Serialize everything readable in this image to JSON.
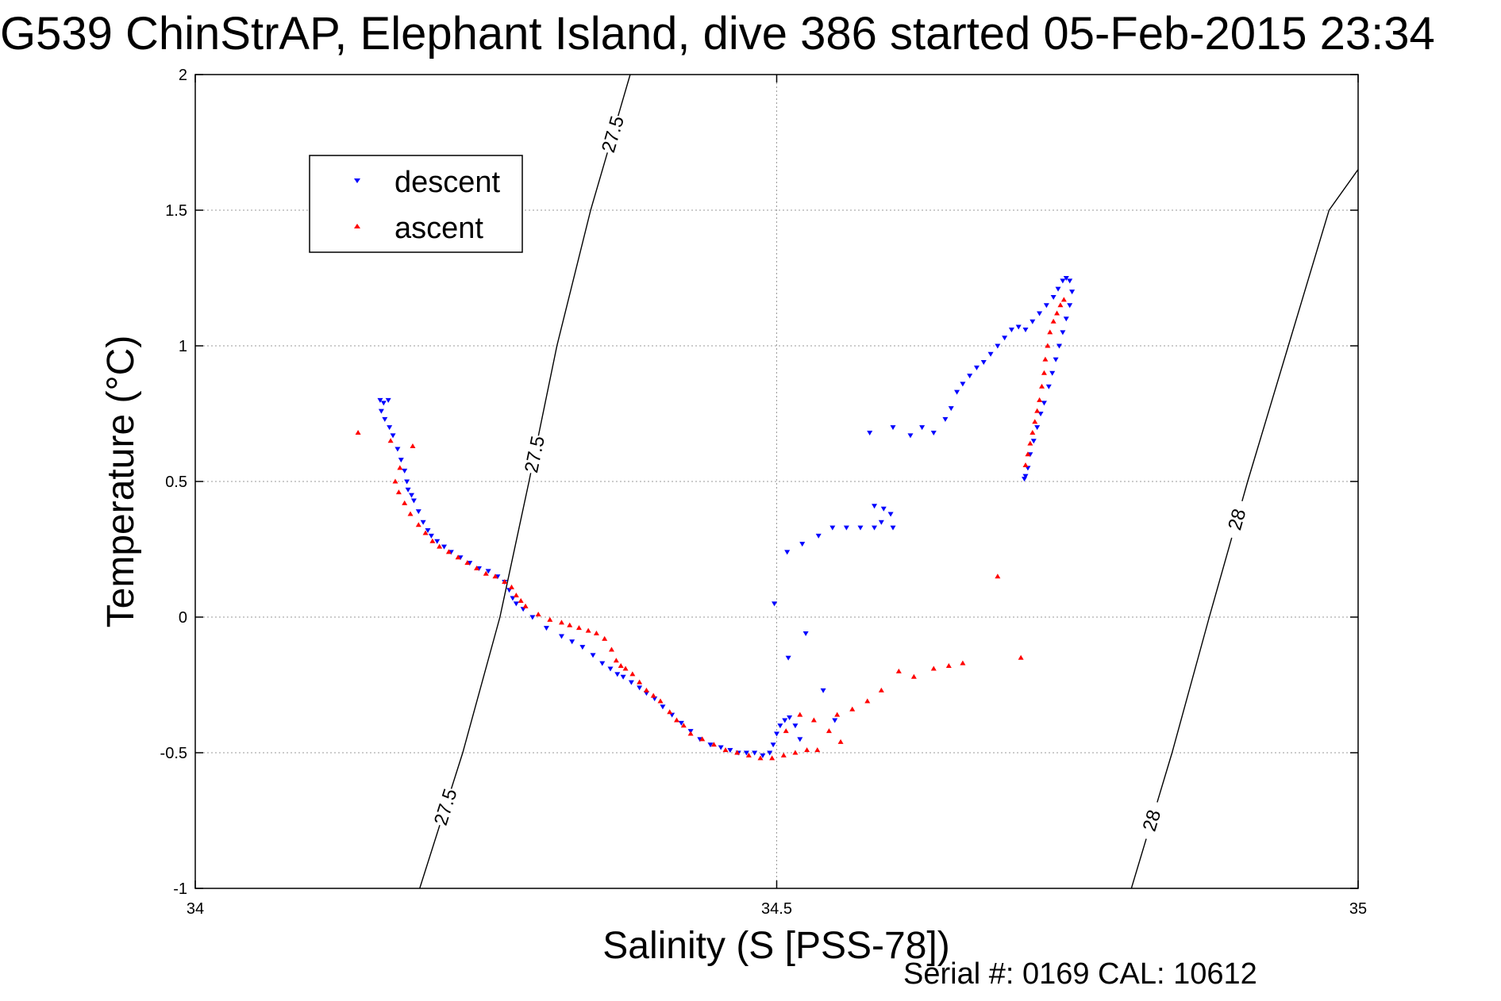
{
  "chart_data": {
    "type": "scatter",
    "title": "G539 ChinStrAP, Elephant Island, dive 386 started 05-Feb-2015 23:34",
    "xlabel": "Salinity (S [PSS-78])",
    "ylabel": "Temperature (°C)",
    "xlim": [
      34,
      35
    ],
    "ylim": [
      -1,
      2
    ],
    "xticks": [
      "34",
      "34.5",
      "35"
    ],
    "yticks": [
      "-1",
      "-0.5",
      "0",
      "0.5",
      "1",
      "1.5",
      "2"
    ],
    "grid": true,
    "legend_position": "top-left",
    "footer": "Serial #: 0169 CAL: 10612",
    "contour_labels": [
      "27.5",
      "27.5",
      "27.5",
      "28",
      "28"
    ],
    "series": [
      {
        "name": "descent",
        "color": "#0000ff",
        "marker": "triangle-down",
        "points": [
          [
            34.159,
            0.8
          ],
          [
            34.162,
            0.79
          ],
          [
            34.166,
            0.8
          ],
          [
            34.16,
            0.76
          ],
          [
            34.163,
            0.73
          ],
          [
            34.167,
            0.7
          ],
          [
            34.17,
            0.67
          ],
          [
            34.174,
            0.62
          ],
          [
            34.177,
            0.58
          ],
          [
            34.18,
            0.54
          ],
          [
            34.182,
            0.5
          ],
          [
            34.183,
            0.47
          ],
          [
            34.186,
            0.45
          ],
          [
            34.188,
            0.43
          ],
          [
            34.192,
            0.39
          ],
          [
            34.196,
            0.35
          ],
          [
            34.2,
            0.32
          ],
          [
            34.203,
            0.3
          ],
          [
            34.208,
            0.28
          ],
          [
            34.214,
            0.26
          ],
          [
            34.22,
            0.24
          ],
          [
            34.228,
            0.22
          ],
          [
            34.236,
            0.2
          ],
          [
            34.244,
            0.18
          ],
          [
            34.252,
            0.17
          ],
          [
            34.26,
            0.15
          ],
          [
            34.266,
            0.13
          ],
          [
            34.27,
            0.1
          ],
          [
            34.273,
            0.07
          ],
          [
            34.276,
            0.05
          ],
          [
            34.282,
            0.03
          ],
          [
            34.29,
            0.0
          ],
          [
            34.302,
            -0.04
          ],
          [
            34.315,
            -0.07
          ],
          [
            34.324,
            -0.09
          ],
          [
            34.333,
            -0.11
          ],
          [
            34.342,
            -0.14
          ],
          [
            34.35,
            -0.17
          ],
          [
            34.357,
            -0.19
          ],
          [
            34.363,
            -0.21
          ],
          [
            34.368,
            -0.22
          ],
          [
            34.375,
            -0.24
          ],
          [
            34.382,
            -0.26
          ],
          [
            34.388,
            -0.28
          ],
          [
            34.395,
            -0.3
          ],
          [
            34.402,
            -0.33
          ],
          [
            34.41,
            -0.36
          ],
          [
            34.418,
            -0.39
          ],
          [
            34.426,
            -0.42
          ],
          [
            34.434,
            -0.45
          ],
          [
            34.443,
            -0.47
          ],
          [
            34.452,
            -0.48
          ],
          [
            34.46,
            -0.49
          ],
          [
            34.467,
            -0.5
          ],
          [
            34.474,
            -0.5
          ],
          [
            34.481,
            -0.5
          ],
          [
            34.488,
            -0.51
          ],
          [
            34.494,
            -0.5
          ],
          [
            34.497,
            -0.47
          ],
          [
            34.5,
            -0.43
          ],
          [
            34.503,
            -0.4
          ],
          [
            34.507,
            -0.38
          ],
          [
            34.511,
            -0.37
          ],
          [
            34.516,
            -0.4
          ],
          [
            34.52,
            -0.45
          ],
          [
            34.498,
            0.05
          ],
          [
            34.509,
            0.24
          ],
          [
            34.522,
            0.27
          ],
          [
            34.536,
            0.3
          ],
          [
            34.548,
            0.33
          ],
          [
            34.56,
            0.33
          ],
          [
            34.572,
            0.33
          ],
          [
            34.584,
            0.33
          ],
          [
            34.59,
            0.35
          ],
          [
            34.6,
            0.33
          ],
          [
            34.584,
            0.41
          ],
          [
            34.592,
            0.4
          ],
          [
            34.598,
            0.38
          ],
          [
            34.51,
            -0.15
          ],
          [
            34.525,
            -0.06
          ],
          [
            34.54,
            -0.27
          ],
          [
            34.55,
            -0.38
          ],
          [
            34.58,
            0.68
          ],
          [
            34.6,
            0.7
          ],
          [
            34.615,
            0.67
          ],
          [
            34.625,
            0.7
          ],
          [
            34.635,
            0.68
          ],
          [
            34.645,
            0.73
          ],
          [
            34.65,
            0.77
          ],
          [
            34.655,
            0.83
          ],
          [
            34.66,
            0.86
          ],
          [
            34.666,
            0.89
          ],
          [
            34.672,
            0.92
          ],
          [
            34.678,
            0.94
          ],
          [
            34.684,
            0.97
          ],
          [
            34.69,
            1.0
          ],
          [
            34.696,
            1.03
          ],
          [
            34.702,
            1.06
          ],
          [
            34.708,
            1.07
          ],
          [
            34.714,
            1.06
          ],
          [
            34.72,
            1.09
          ],
          [
            34.726,
            1.12
          ],
          [
            34.732,
            1.15
          ],
          [
            34.738,
            1.18
          ],
          [
            34.742,
            1.21
          ],
          [
            34.746,
            1.24
          ],
          [
            34.749,
            1.25
          ],
          [
            34.752,
            1.24
          ],
          [
            34.754,
            1.2
          ],
          [
            34.752,
            1.15
          ],
          [
            34.749,
            1.1
          ],
          [
            34.746,
            1.05
          ],
          [
            34.743,
            1.0
          ],
          [
            34.74,
            0.95
          ],
          [
            34.737,
            0.9
          ],
          [
            34.734,
            0.85
          ],
          [
            34.73,
            0.79
          ],
          [
            34.727,
            0.75
          ],
          [
            34.724,
            0.7
          ],
          [
            34.721,
            0.65
          ],
          [
            34.718,
            0.6
          ],
          [
            34.716,
            0.55
          ],
          [
            34.714,
            0.52
          ],
          [
            34.713,
            0.51
          ]
        ]
      },
      {
        "name": "ascent",
        "color": "#ff0000",
        "marker": "triangle-up",
        "points": [
          [
            34.14,
            0.68
          ],
          [
            34.168,
            0.65
          ],
          [
            34.187,
            0.63
          ],
          [
            34.176,
            0.55
          ],
          [
            34.172,
            0.5
          ],
          [
            34.175,
            0.46
          ],
          [
            34.18,
            0.42
          ],
          [
            34.185,
            0.38
          ],
          [
            34.192,
            0.34
          ],
          [
            34.198,
            0.31
          ],
          [
            34.204,
            0.28
          ],
          [
            34.21,
            0.26
          ],
          [
            34.218,
            0.24
          ],
          [
            34.226,
            0.22
          ],
          [
            34.234,
            0.2
          ],
          [
            34.242,
            0.18
          ],
          [
            34.25,
            0.16
          ],
          [
            34.258,
            0.15
          ],
          [
            34.266,
            0.13
          ],
          [
            34.272,
            0.11
          ],
          [
            34.276,
            0.08
          ],
          [
            34.28,
            0.06
          ],
          [
            34.284,
            0.04
          ],
          [
            34.295,
            0.01
          ],
          [
            34.305,
            -0.01
          ],
          [
            34.315,
            -0.02
          ],
          [
            34.322,
            -0.03
          ],
          [
            34.33,
            -0.04
          ],
          [
            34.338,
            -0.05
          ],
          [
            34.345,
            -0.06
          ],
          [
            34.352,
            -0.08
          ],
          [
            34.358,
            -0.12
          ],
          [
            34.362,
            -0.16
          ],
          [
            34.366,
            -0.18
          ],
          [
            34.37,
            -0.19
          ],
          [
            34.376,
            -0.21
          ],
          [
            34.382,
            -0.24
          ],
          [
            34.388,
            -0.27
          ],
          [
            34.394,
            -0.29
          ],
          [
            34.4,
            -0.31
          ],
          [
            34.408,
            -0.35
          ],
          [
            34.414,
            -0.38
          ],
          [
            34.42,
            -0.4
          ],
          [
            34.426,
            -0.43
          ],
          [
            34.436,
            -0.45
          ],
          [
            34.446,
            -0.47
          ],
          [
            34.456,
            -0.49
          ],
          [
            34.466,
            -0.5
          ],
          [
            34.476,
            -0.51
          ],
          [
            34.486,
            -0.52
          ],
          [
            34.496,
            -0.52
          ],
          [
            34.506,
            -0.51
          ],
          [
            34.516,
            -0.5
          ],
          [
            34.526,
            -0.49
          ],
          [
            34.535,
            -0.49
          ],
          [
            34.508,
            -0.42
          ],
          [
            34.52,
            -0.36
          ],
          [
            34.532,
            -0.38
          ],
          [
            34.545,
            -0.42
          ],
          [
            34.555,
            -0.46
          ],
          [
            34.552,
            -0.36
          ],
          [
            34.565,
            -0.34
          ],
          [
            34.578,
            -0.31
          ],
          [
            34.59,
            -0.27
          ],
          [
            34.605,
            -0.2
          ],
          [
            34.618,
            -0.22
          ],
          [
            34.635,
            -0.19
          ],
          [
            34.648,
            -0.18
          ],
          [
            34.66,
            -0.17
          ],
          [
            34.69,
            0.15
          ],
          [
            34.71,
            -0.15
          ],
          [
            34.714,
            0.56
          ],
          [
            34.716,
            0.6
          ],
          [
            34.718,
            0.64
          ],
          [
            34.72,
            0.68
          ],
          [
            34.722,
            0.72
          ],
          [
            34.724,
            0.76
          ],
          [
            34.726,
            0.8
          ],
          [
            34.728,
            0.85
          ],
          [
            34.73,
            0.9
          ],
          [
            34.731,
            0.95
          ],
          [
            34.733,
            1.0
          ],
          [
            34.735,
            1.05
          ],
          [
            34.738,
            1.09
          ],
          [
            34.741,
            1.12
          ],
          [
            34.744,
            1.15
          ],
          [
            34.747,
            1.17
          ]
        ]
      }
    ],
    "contours": [
      {
        "label_value": 27.5,
        "points": [
          [
            34.193,
            -1.0
          ],
          [
            34.23,
            -0.5
          ],
          [
            34.262,
            0.0
          ],
          [
            34.287,
            0.5
          ],
          [
            34.311,
            1.0
          ],
          [
            34.34,
            1.5
          ],
          [
            34.374,
            2.0
          ]
        ]
      },
      {
        "label_value": 28,
        "points": [
          [
            34.805,
            -1.0
          ],
          [
            34.84,
            -0.5
          ],
          [
            34.872,
            0.0
          ],
          [
            34.905,
            0.5
          ],
          [
            34.94,
            1.0
          ],
          [
            34.975,
            1.5
          ],
          [
            35.0,
            1.65
          ]
        ]
      }
    ]
  }
}
